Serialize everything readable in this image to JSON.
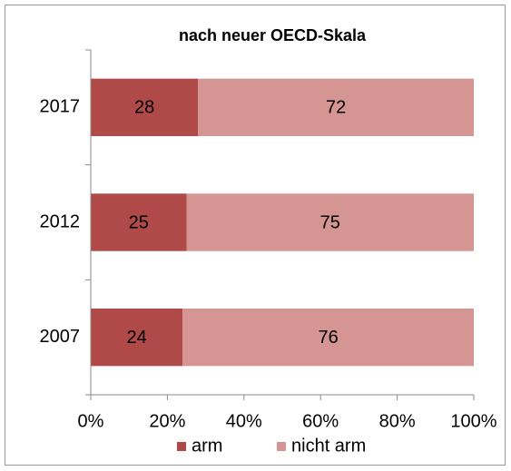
{
  "chart_data": {
    "type": "stacked-bar-horizontal",
    "title": "nach neuer OECD-Skala",
    "categories": [
      "2017",
      "2012",
      "2007"
    ],
    "series": [
      {
        "name": "arm",
        "color": "#b04a48",
        "values": [
          28,
          25,
          24
        ]
      },
      {
        "name": "nicht arm",
        "color": "#d49593",
        "values": [
          72,
          75,
          76
        ]
      }
    ],
    "xlim": [
      0,
      100
    ],
    "xticks": [
      {
        "value": 0,
        "label": "0%"
      },
      {
        "value": 20,
        "label": "20%"
      },
      {
        "value": 40,
        "label": "40%"
      },
      {
        "value": 60,
        "label": "60%"
      },
      {
        "value": 80,
        "label": "80%"
      },
      {
        "value": 100,
        "label": "100%"
      }
    ],
    "legend": "bottom"
  }
}
